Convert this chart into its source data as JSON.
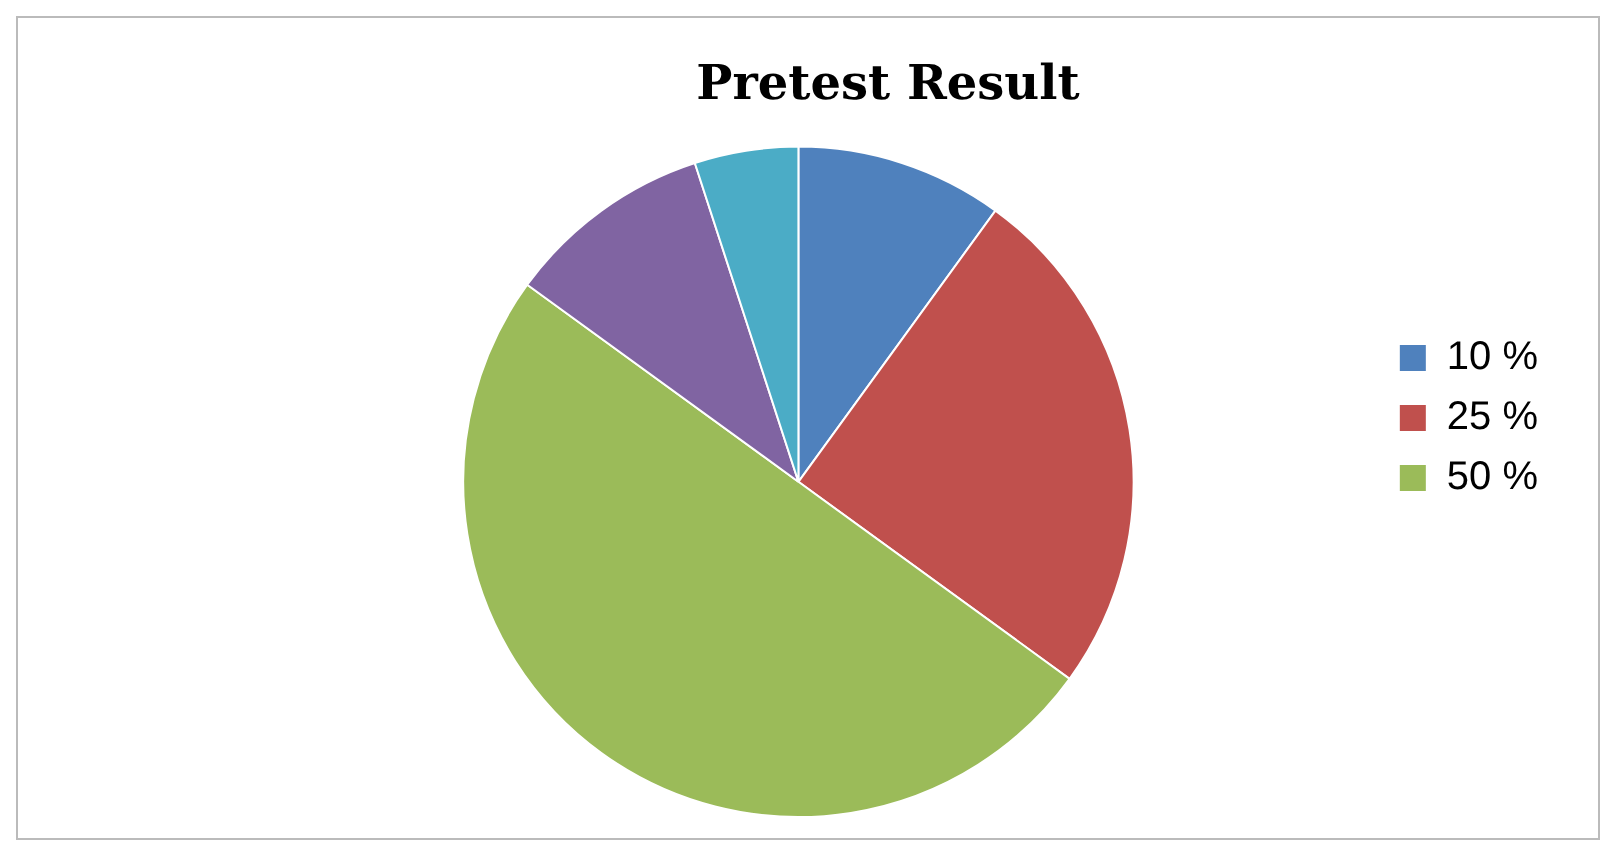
{
  "chart_data": {
    "type": "pie",
    "title": "Pretest Result",
    "categories": [
      "10 %",
      "25 %",
      "50 %",
      null,
      null
    ],
    "values": [
      10,
      25,
      50,
      10,
      5
    ],
    "colors": [
      "#4f81bd",
      "#c0504d",
      "#9bbb59",
      "#8064a2",
      "#4bacc6"
    ],
    "legend": "right"
  }
}
